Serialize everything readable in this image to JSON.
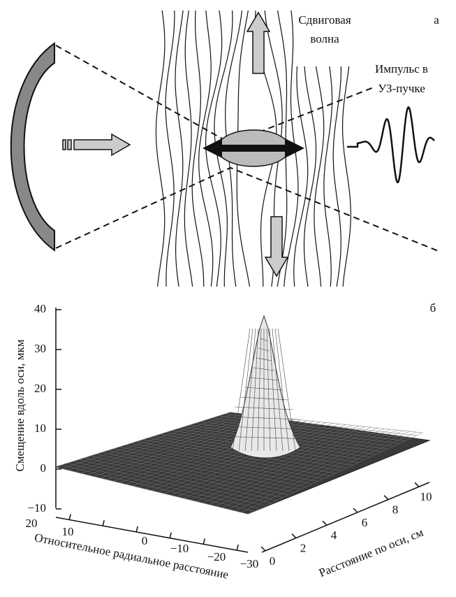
{
  "panel_a": {
    "label": "а",
    "shear_wave": [
      "Сдвиговая",
      "волна"
    ],
    "pulse": [
      "Импульс в",
      "УЗ-пучке"
    ]
  },
  "panel_b": {
    "label": "б",
    "z_axis": {
      "title": "Смещение вдоль оси, мкм",
      "ticks": [
        "40",
        "30",
        "20",
        "10",
        "0",
        "−10"
      ]
    },
    "radial_axis": {
      "title": "Относительное радиальное расстояние",
      "ticks": [
        "20",
        "10",
        "0",
        "−10",
        "−20",
        "−30"
      ]
    },
    "axial_axis": {
      "title": "Расстояние по оси, см",
      "ticks": [
        "0",
        "2",
        "4",
        "6",
        "8",
        "10"
      ]
    }
  }
}
